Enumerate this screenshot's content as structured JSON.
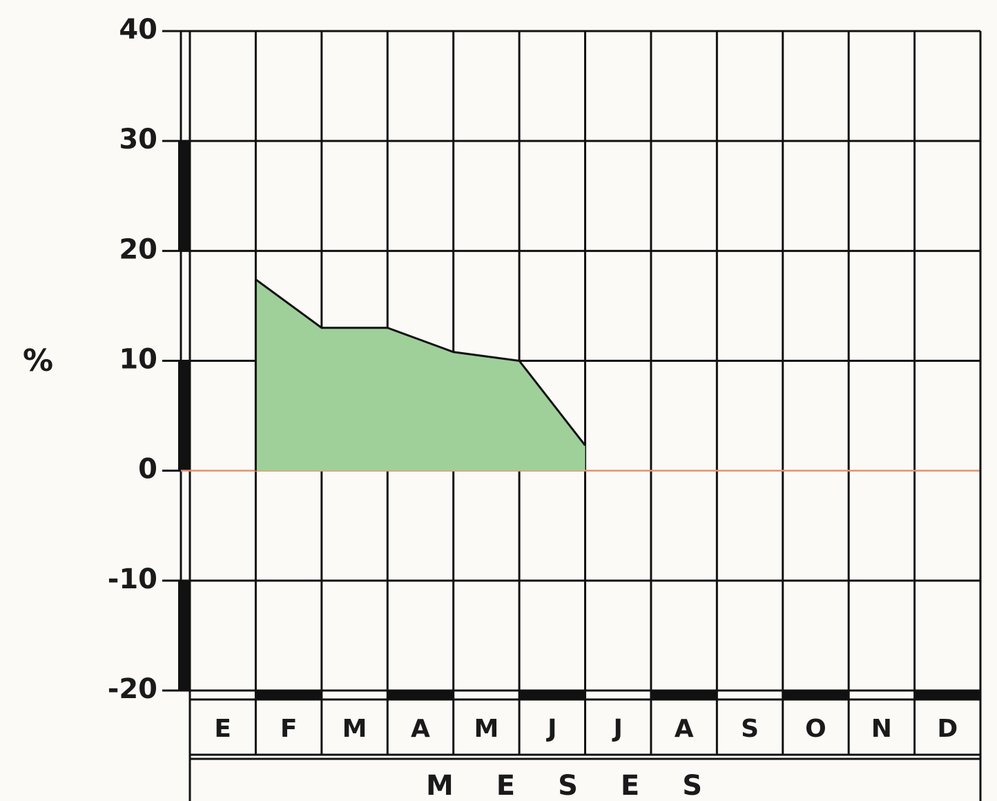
{
  "chart_data": {
    "type": "area",
    "ylabel": "%",
    "xlabel": "MESES",
    "categories": [
      "E",
      "F",
      "M",
      "A",
      "M",
      "J",
      "J",
      "A",
      "S",
      "O",
      "N",
      "D"
    ],
    "values": [
      null,
      17.4,
      13,
      13,
      10.8,
      10,
      2.3,
      null,
      null,
      null,
      null,
      null
    ],
    "color": "#9fd09a",
    "zero_line_color": "#e8906a",
    "ylim": [
      -20,
      40
    ],
    "yticks": [
      40,
      30,
      20,
      10,
      0,
      -10,
      -20
    ],
    "grid": true
  }
}
